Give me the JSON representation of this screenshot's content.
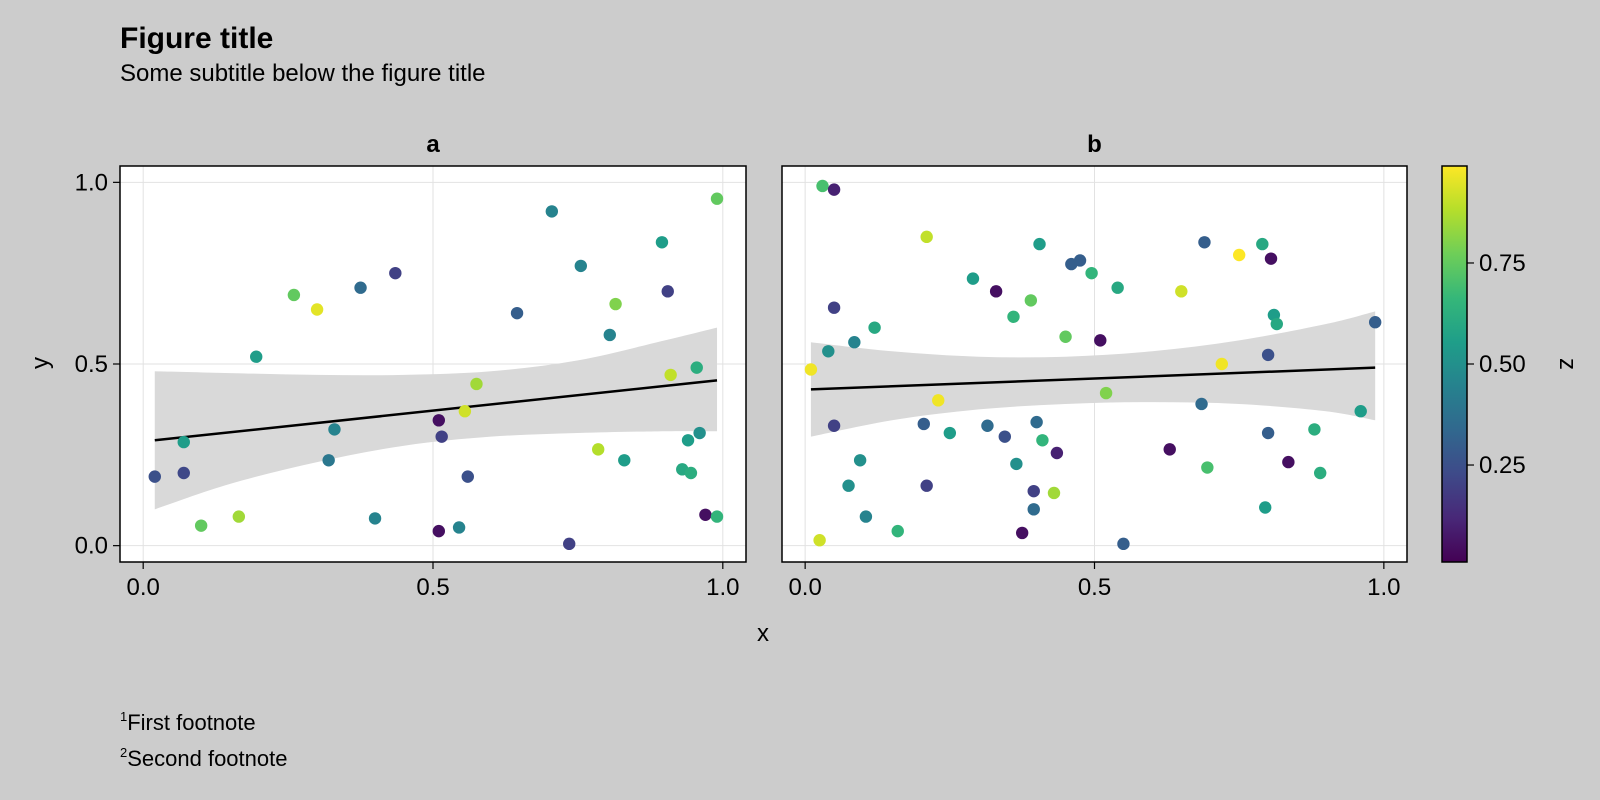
{
  "figure": {
    "title": "Figure title",
    "subtitle": "Some subtitle below the figure title",
    "footnotes": [
      {
        "marker": "1",
        "text": "First footnote"
      },
      {
        "marker": "2",
        "text": "Second footnote"
      }
    ]
  },
  "chart_data": {
    "type": "scatter",
    "xlabel": "x",
    "ylabel": "y",
    "xlim": [
      -0.04,
      1.04
    ],
    "ylim": [
      -0.045,
      1.045
    ],
    "xticks": [
      {
        "value": 0.0,
        "label": "0.0"
      },
      {
        "value": 0.5,
        "label": "0.5"
      },
      {
        "value": 1.0,
        "label": "1.0"
      }
    ],
    "yticks": [
      {
        "value": 0.0,
        "label": "0.0"
      },
      {
        "value": 0.5,
        "label": "0.5"
      },
      {
        "value": 1.0,
        "label": "1.0"
      }
    ],
    "grid": true,
    "colorbar": {
      "label": "z",
      "colormap": "viridis",
      "range": [
        0.01,
        0.99
      ],
      "ticks": [
        {
          "value": 0.25,
          "label": "0.25"
        },
        {
          "value": 0.5,
          "label": "0.50"
        },
        {
          "value": 0.75,
          "label": "0.75"
        }
      ],
      "colors": [
        "#440154",
        "#482878",
        "#3e4a89",
        "#31688e",
        "#26828e",
        "#1f9e89",
        "#35b779",
        "#6ece58",
        "#b5de2b",
        "#fde725"
      ]
    },
    "band_color": "#d9d9d9",
    "line_color": "#000000",
    "panels": [
      {
        "title": "a",
        "fit": {
          "x": [
            0.02,
            0.99
          ],
          "y": [
            0.29,
            0.455
          ]
        },
        "band": {
          "x": [
            0.02,
            0.15,
            0.3,
            0.45,
            0.6,
            0.75,
            0.9,
            0.99
          ],
          "upper": [
            0.48,
            0.475,
            0.47,
            0.47,
            0.48,
            0.51,
            0.565,
            0.6
          ],
          "lower": [
            0.1,
            0.17,
            0.23,
            0.275,
            0.3,
            0.31,
            0.315,
            0.315
          ]
        },
        "points": [
          {
            "x": 0.02,
            "y": 0.19,
            "z": 0.25
          },
          {
            "x": 0.07,
            "y": 0.285,
            "z": 0.55
          },
          {
            "x": 0.07,
            "y": 0.2,
            "z": 0.22
          },
          {
            "x": 0.1,
            "y": 0.055,
            "z": 0.75
          },
          {
            "x": 0.165,
            "y": 0.08,
            "z": 0.85
          },
          {
            "x": 0.195,
            "y": 0.52,
            "z": 0.55
          },
          {
            "x": 0.26,
            "y": 0.69,
            "z": 0.75
          },
          {
            "x": 0.3,
            "y": 0.65,
            "z": 0.95
          },
          {
            "x": 0.32,
            "y": 0.235,
            "z": 0.4
          },
          {
            "x": 0.33,
            "y": 0.32,
            "z": 0.45
          },
          {
            "x": 0.375,
            "y": 0.71,
            "z": 0.35
          },
          {
            "x": 0.4,
            "y": 0.075,
            "z": 0.45
          },
          {
            "x": 0.435,
            "y": 0.75,
            "z": 0.2
          },
          {
            "x": 0.51,
            "y": 0.345,
            "z": 0.05
          },
          {
            "x": 0.51,
            "y": 0.04,
            "z": 0.05
          },
          {
            "x": 0.515,
            "y": 0.3,
            "z": 0.2
          },
          {
            "x": 0.545,
            "y": 0.05,
            "z": 0.45
          },
          {
            "x": 0.555,
            "y": 0.37,
            "z": 0.92
          },
          {
            "x": 0.56,
            "y": 0.19,
            "z": 0.25
          },
          {
            "x": 0.575,
            "y": 0.445,
            "z": 0.85
          },
          {
            "x": 0.645,
            "y": 0.64,
            "z": 0.3
          },
          {
            "x": 0.705,
            "y": 0.92,
            "z": 0.45
          },
          {
            "x": 0.735,
            "y": 0.005,
            "z": 0.2
          },
          {
            "x": 0.755,
            "y": 0.77,
            "z": 0.45
          },
          {
            "x": 0.785,
            "y": 0.265,
            "z": 0.88
          },
          {
            "x": 0.805,
            "y": 0.58,
            "z": 0.45
          },
          {
            "x": 0.815,
            "y": 0.665,
            "z": 0.8
          },
          {
            "x": 0.83,
            "y": 0.235,
            "z": 0.55
          },
          {
            "x": 0.895,
            "y": 0.835,
            "z": 0.55
          },
          {
            "x": 0.905,
            "y": 0.7,
            "z": 0.2
          },
          {
            "x": 0.91,
            "y": 0.47,
            "z": 0.9
          },
          {
            "x": 0.93,
            "y": 0.21,
            "z": 0.6
          },
          {
            "x": 0.94,
            "y": 0.29,
            "z": 0.55
          },
          {
            "x": 0.945,
            "y": 0.2,
            "z": 0.62
          },
          {
            "x": 0.955,
            "y": 0.49,
            "z": 0.62
          },
          {
            "x": 0.96,
            "y": 0.31,
            "z": 0.5
          },
          {
            "x": 0.97,
            "y": 0.085,
            "z": 0.05
          },
          {
            "x": 0.99,
            "y": 0.955,
            "z": 0.75
          },
          {
            "x": 0.99,
            "y": 0.08,
            "z": 0.65
          }
        ]
      },
      {
        "title": "b",
        "fit": {
          "x": [
            0.01,
            0.985
          ],
          "y": [
            0.43,
            0.49
          ]
        },
        "band": {
          "x": [
            0.01,
            0.15,
            0.3,
            0.45,
            0.6,
            0.75,
            0.9,
            0.985
          ],
          "upper": [
            0.56,
            0.535,
            0.52,
            0.52,
            0.535,
            0.565,
            0.61,
            0.645
          ],
          "lower": [
            0.3,
            0.345,
            0.375,
            0.39,
            0.395,
            0.39,
            0.37,
            0.345
          ]
        },
        "points": [
          {
            "x": 0.01,
            "y": 0.485,
            "z": 0.97
          },
          {
            "x": 0.025,
            "y": 0.015,
            "z": 0.92
          },
          {
            "x": 0.03,
            "y": 0.99,
            "z": 0.7
          },
          {
            "x": 0.04,
            "y": 0.535,
            "z": 0.5
          },
          {
            "x": 0.05,
            "y": 0.98,
            "z": 0.1
          },
          {
            "x": 0.05,
            "y": 0.655,
            "z": 0.2
          },
          {
            "x": 0.05,
            "y": 0.33,
            "z": 0.2
          },
          {
            "x": 0.075,
            "y": 0.165,
            "z": 0.5
          },
          {
            "x": 0.085,
            "y": 0.56,
            "z": 0.45
          },
          {
            "x": 0.095,
            "y": 0.235,
            "z": 0.5
          },
          {
            "x": 0.105,
            "y": 0.08,
            "z": 0.45
          },
          {
            "x": 0.12,
            "y": 0.6,
            "z": 0.6
          },
          {
            "x": 0.16,
            "y": 0.04,
            "z": 0.65
          },
          {
            "x": 0.205,
            "y": 0.335,
            "z": 0.3
          },
          {
            "x": 0.21,
            "y": 0.85,
            "z": 0.9
          },
          {
            "x": 0.21,
            "y": 0.165,
            "z": 0.2
          },
          {
            "x": 0.23,
            "y": 0.4,
            "z": 0.97
          },
          {
            "x": 0.25,
            "y": 0.31,
            "z": 0.55
          },
          {
            "x": 0.29,
            "y": 0.735,
            "z": 0.55
          },
          {
            "x": 0.315,
            "y": 0.33,
            "z": 0.35
          },
          {
            "x": 0.33,
            "y": 0.7,
            "z": 0.05
          },
          {
            "x": 0.345,
            "y": 0.3,
            "z": 0.25
          },
          {
            "x": 0.36,
            "y": 0.63,
            "z": 0.65
          },
          {
            "x": 0.365,
            "y": 0.225,
            "z": 0.5
          },
          {
            "x": 0.375,
            "y": 0.035,
            "z": 0.05
          },
          {
            "x": 0.39,
            "y": 0.675,
            "z": 0.75
          },
          {
            "x": 0.395,
            "y": 0.15,
            "z": 0.2
          },
          {
            "x": 0.395,
            "y": 0.1,
            "z": 0.35
          },
          {
            "x": 0.4,
            "y": 0.34,
            "z": 0.35
          },
          {
            "x": 0.405,
            "y": 0.83,
            "z": 0.55
          },
          {
            "x": 0.41,
            "y": 0.29,
            "z": 0.65
          },
          {
            "x": 0.43,
            "y": 0.145,
            "z": 0.85
          },
          {
            "x": 0.435,
            "y": 0.255,
            "z": 0.1
          },
          {
            "x": 0.45,
            "y": 0.575,
            "z": 0.75
          },
          {
            "x": 0.46,
            "y": 0.775,
            "z": 0.3
          },
          {
            "x": 0.475,
            "y": 0.785,
            "z": 0.3
          },
          {
            "x": 0.495,
            "y": 0.75,
            "z": 0.65
          },
          {
            "x": 0.51,
            "y": 0.565,
            "z": 0.05
          },
          {
            "x": 0.52,
            "y": 0.42,
            "z": 0.8
          },
          {
            "x": 0.54,
            "y": 0.71,
            "z": 0.6
          },
          {
            "x": 0.55,
            "y": 0.005,
            "z": 0.3
          },
          {
            "x": 0.63,
            "y": 0.265,
            "z": 0.05
          },
          {
            "x": 0.65,
            "y": 0.7,
            "z": 0.92
          },
          {
            "x": 0.685,
            "y": 0.39,
            "z": 0.35
          },
          {
            "x": 0.69,
            "y": 0.835,
            "z": 0.3
          },
          {
            "x": 0.695,
            "y": 0.215,
            "z": 0.7
          },
          {
            "x": 0.72,
            "y": 0.5,
            "z": 0.97
          },
          {
            "x": 0.75,
            "y": 0.8,
            "z": 0.99
          },
          {
            "x": 0.79,
            "y": 0.83,
            "z": 0.6
          },
          {
            "x": 0.795,
            "y": 0.105,
            "z": 0.55
          },
          {
            "x": 0.8,
            "y": 0.525,
            "z": 0.25
          },
          {
            "x": 0.8,
            "y": 0.31,
            "z": 0.3
          },
          {
            "x": 0.805,
            "y": 0.79,
            "z": 0.05
          },
          {
            "x": 0.81,
            "y": 0.635,
            "z": 0.55
          },
          {
            "x": 0.815,
            "y": 0.61,
            "z": 0.6
          },
          {
            "x": 0.835,
            "y": 0.23,
            "z": 0.05
          },
          {
            "x": 0.88,
            "y": 0.32,
            "z": 0.62
          },
          {
            "x": 0.89,
            "y": 0.2,
            "z": 0.62
          },
          {
            "x": 0.96,
            "y": 0.37,
            "z": 0.55
          },
          {
            "x": 0.985,
            "y": 0.615,
            "z": 0.3
          }
        ]
      }
    ]
  }
}
